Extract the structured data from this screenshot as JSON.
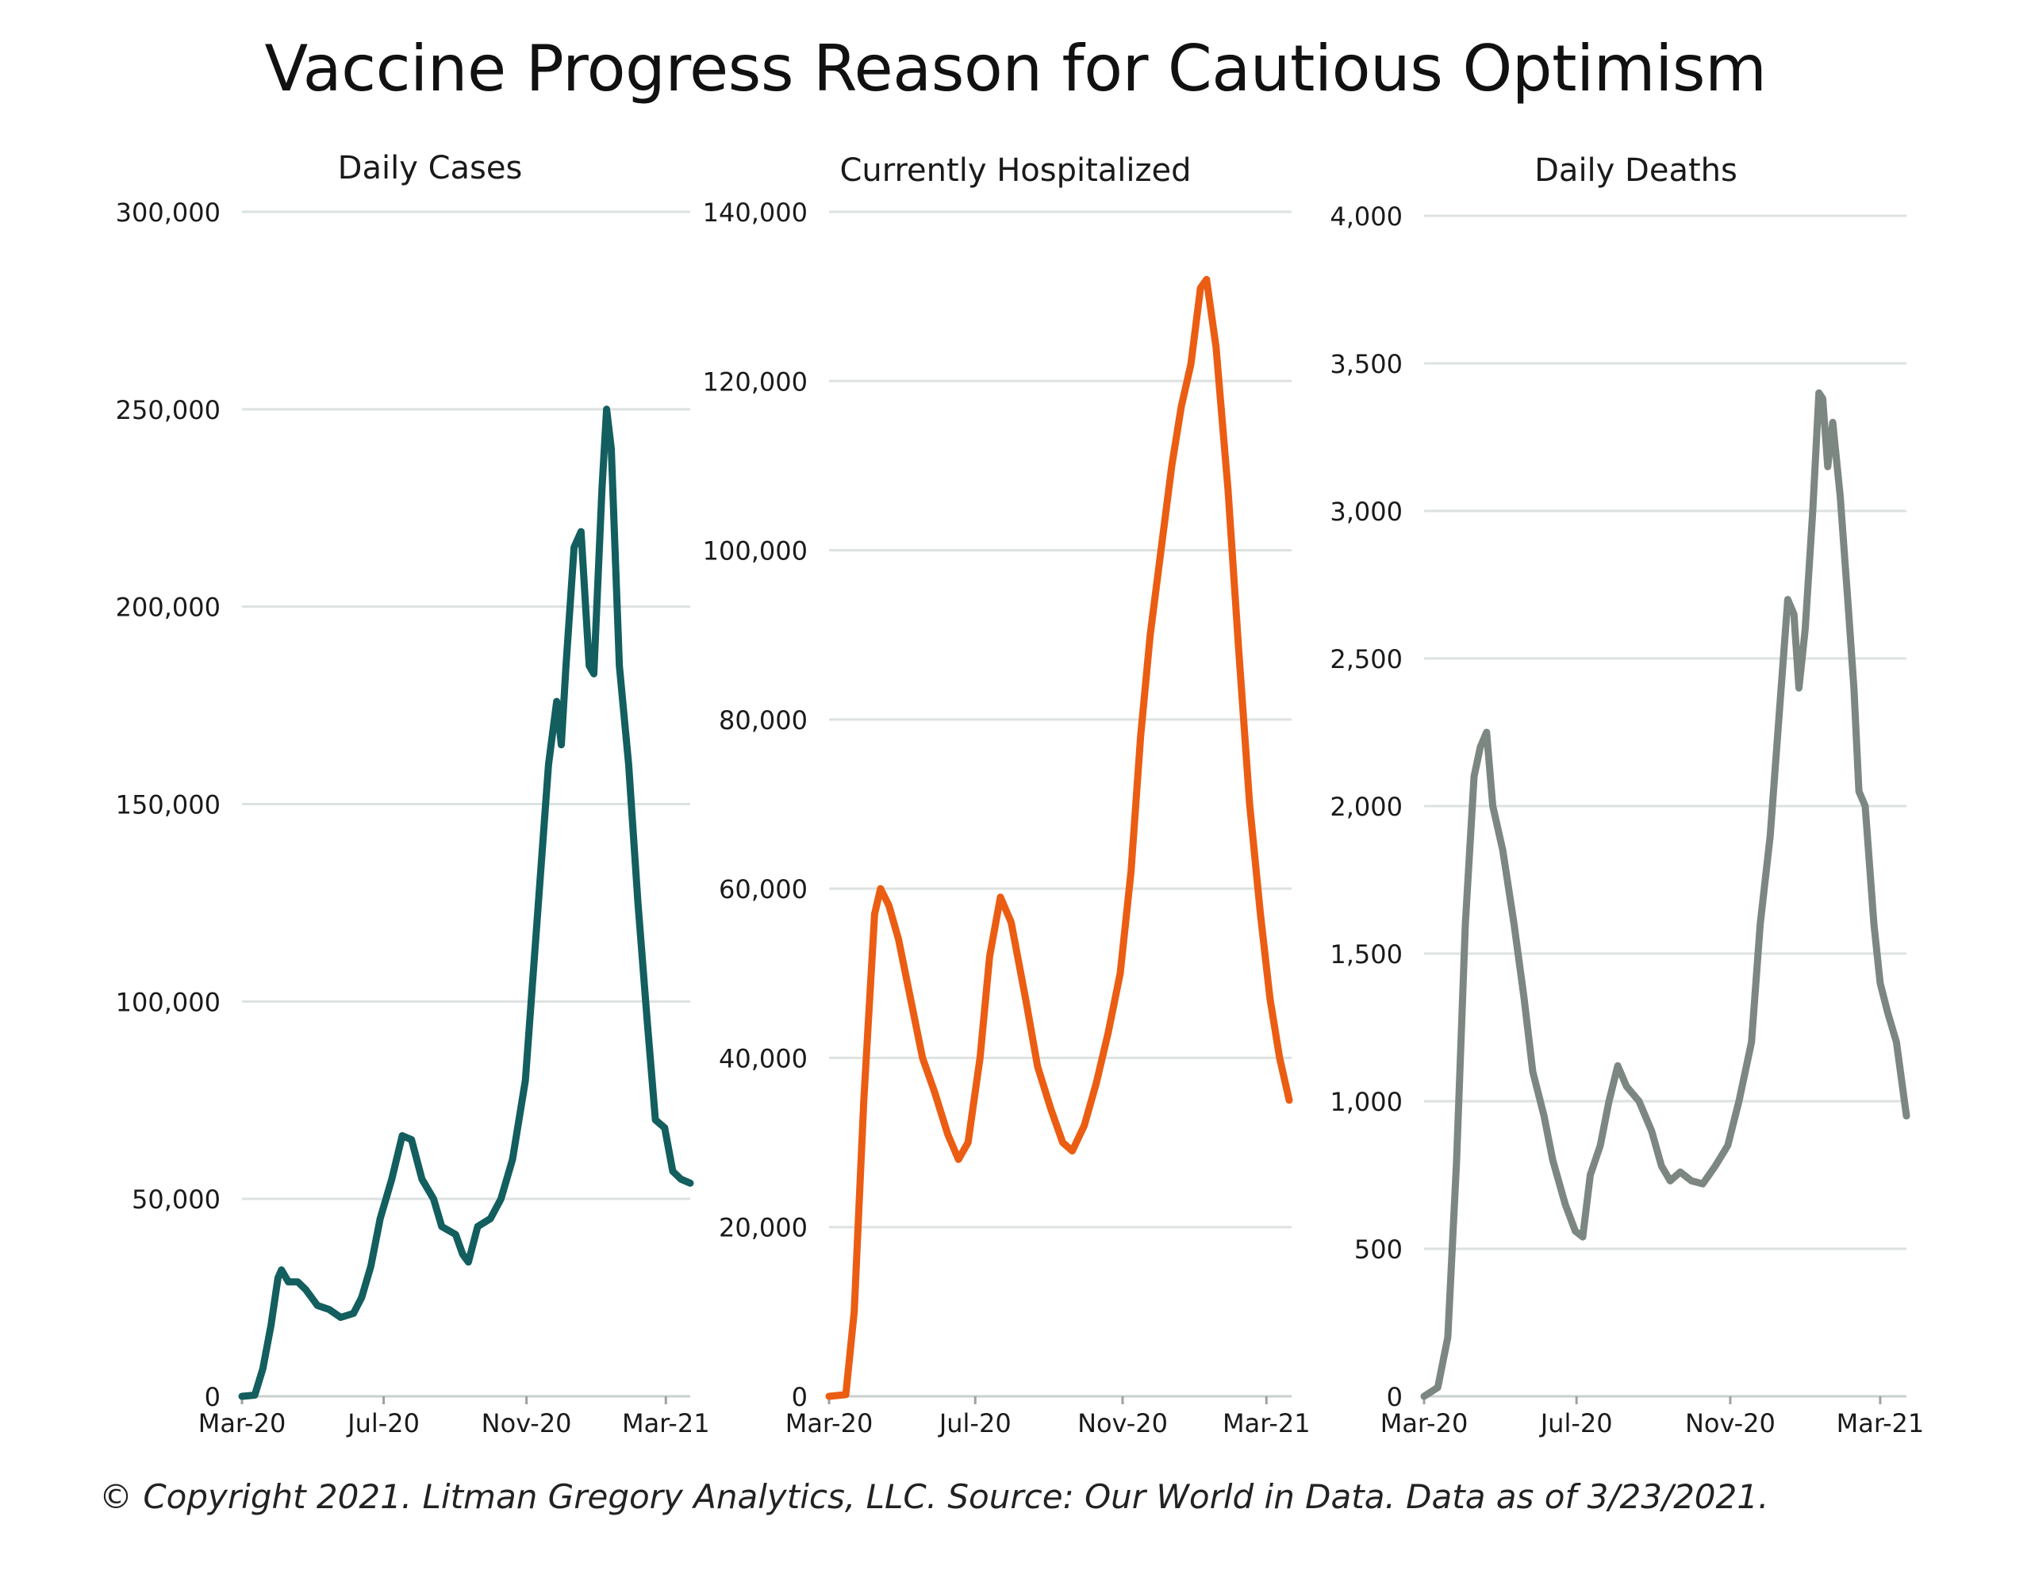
{
  "title": "Vaccine Progress Reason for Cautious Optimism",
  "footer": "© Copyright 2021. Litman Gregory Analytics, LLC. Source: Our World in Data. Data as of 3/23/2021.",
  "chart_data": [
    {
      "type": "line",
      "title": "Daily Cases",
      "color": "#135E5E",
      "xlim": [
        "2020-03-01",
        "2021-03-22"
      ],
      "x_ticks": [
        {
          "label": "Mar-20",
          "date": "2020-03-01"
        },
        {
          "label": "Jul-20",
          "date": "2020-07-01"
        },
        {
          "label": "Nov-20",
          "date": "2020-11-01"
        },
        {
          "label": "Mar-21",
          "date": "2021-03-01"
        }
      ],
      "ylim": [
        0,
        300000
      ],
      "y_ticks": [
        0,
        50000,
        100000,
        150000,
        200000,
        250000,
        300000
      ],
      "y_tick_labels": [
        "0",
        "50,000",
        "100,000",
        "150,000",
        "200,000",
        "250,000",
        "300,000"
      ],
      "grid": true,
      "series": [
        {
          "points": [
            [
              "2020-03-01",
              0
            ],
            [
              "2020-03-12",
              300
            ],
            [
              "2020-03-19",
              7000
            ],
            [
              "2020-03-26",
              18000
            ],
            [
              "2020-04-01",
              30000
            ],
            [
              "2020-04-04",
              32000
            ],
            [
              "2020-04-10",
              29000
            ],
            [
              "2020-04-18",
              29000
            ],
            [
              "2020-04-25",
              27000
            ],
            [
              "2020-05-05",
              23000
            ],
            [
              "2020-05-15",
              22000
            ],
            [
              "2020-05-25",
              20000
            ],
            [
              "2020-06-05",
              21000
            ],
            [
              "2020-06-12",
              25000
            ],
            [
              "2020-06-20",
              33000
            ],
            [
              "2020-06-28",
              45000
            ],
            [
              "2020-07-08",
              55000
            ],
            [
              "2020-07-17",
              66000
            ],
            [
              "2020-07-25",
              65000
            ],
            [
              "2020-08-03",
              55000
            ],
            [
              "2020-08-13",
              50000
            ],
            [
              "2020-08-20",
              43000
            ],
            [
              "2020-09-01",
              41000
            ],
            [
              "2020-09-07",
              36000
            ],
            [
              "2020-09-12",
              34000
            ],
            [
              "2020-09-20",
              43000
            ],
            [
              "2020-10-01",
              45000
            ],
            [
              "2020-10-10",
              50000
            ],
            [
              "2020-10-20",
              60000
            ],
            [
              "2020-10-31",
              80000
            ],
            [
              "2020-11-10",
              120000
            ],
            [
              "2020-11-20",
              160000
            ],
            [
              "2020-11-27",
              176000
            ],
            [
              "2020-12-01",
              165000
            ],
            [
              "2020-12-05",
              185000
            ],
            [
              "2020-12-12",
              215000
            ],
            [
              "2020-12-18",
              219000
            ],
            [
              "2020-12-25",
              185000
            ],
            [
              "2020-12-29",
              183000
            ],
            [
              "2021-01-05",
              230000
            ],
            [
              "2021-01-09",
              250000
            ],
            [
              "2021-01-13",
              240000
            ],
            [
              "2021-01-20",
              185000
            ],
            [
              "2021-01-28",
              160000
            ],
            [
              "2021-02-05",
              125000
            ],
            [
              "2021-02-13",
              95000
            ],
            [
              "2021-02-20",
              70000
            ],
            [
              "2021-02-28",
              68000
            ],
            [
              "2021-03-07",
              57000
            ],
            [
              "2021-03-14",
              55000
            ],
            [
              "2021-03-22",
              54000
            ]
          ]
        }
      ]
    },
    {
      "type": "line",
      "title": "Currently Hospitalized",
      "color": "#EB5D13",
      "xlim": [
        "2020-03-01",
        "2021-03-22"
      ],
      "x_ticks": [
        {
          "label": "Mar-20",
          "date": "2020-03-01"
        },
        {
          "label": "Jul-20",
          "date": "2020-07-01"
        },
        {
          "label": "Nov-20",
          "date": "2020-11-01"
        },
        {
          "label": "Mar-21",
          "date": "2021-03-01"
        }
      ],
      "ylim": [
        0,
        140000
      ],
      "y_ticks": [
        0,
        20000,
        40000,
        60000,
        80000,
        100000,
        120000,
        140000
      ],
      "y_tick_labels": [
        "0",
        "20,000",
        "40,000",
        "60,000",
        "80,000",
        "100,000",
        "120,000",
        "140,000"
      ],
      "grid": true,
      "series": [
        {
          "points": [
            [
              "2020-03-01",
              0
            ],
            [
              "2020-03-15",
              200
            ],
            [
              "2020-03-22",
              10000
            ],
            [
              "2020-03-30",
              35000
            ],
            [
              "2020-04-08",
              57000
            ],
            [
              "2020-04-13",
              60000
            ],
            [
              "2020-04-20",
              58000
            ],
            [
              "2020-04-28",
              54000
            ],
            [
              "2020-05-08",
              47000
            ],
            [
              "2020-05-18",
              40000
            ],
            [
              "2020-05-28",
              36000
            ],
            [
              "2020-06-08",
              31000
            ],
            [
              "2020-06-17",
              28000
            ],
            [
              "2020-06-25",
              30000
            ],
            [
              "2020-07-05",
              40000
            ],
            [
              "2020-07-13",
              52000
            ],
            [
              "2020-07-22",
              59000
            ],
            [
              "2020-07-31",
              56000
            ],
            [
              "2020-08-12",
              47000
            ],
            [
              "2020-08-22",
              39000
            ],
            [
              "2020-09-02",
              34000
            ],
            [
              "2020-09-12",
              30000
            ],
            [
              "2020-09-20",
              29000
            ],
            [
              "2020-09-30",
              32000
            ],
            [
              "2020-10-10",
              37000
            ],
            [
              "2020-10-20",
              43000
            ],
            [
              "2020-10-30",
              50000
            ],
            [
              "2020-11-08",
              62000
            ],
            [
              "2020-11-16",
              78000
            ],
            [
              "2020-11-24",
              90000
            ],
            [
              "2020-12-03",
              100000
            ],
            [
              "2020-12-12",
              110000
            ],
            [
              "2020-12-20",
              117000
            ],
            [
              "2020-12-28",
              122000
            ],
            [
              "2021-01-05",
              131000
            ],
            [
              "2021-01-10",
              132000
            ],
            [
              "2021-01-18",
              124000
            ],
            [
              "2021-01-28",
              107000
            ],
            [
              "2021-02-06",
              88000
            ],
            [
              "2021-02-15",
              70000
            ],
            [
              "2021-02-24",
              57000
            ],
            [
              "2021-03-04",
              47000
            ],
            [
              "2021-03-12",
              40000
            ],
            [
              "2021-03-20",
              35000
            ]
          ]
        }
      ]
    },
    {
      "type": "line",
      "title": "Daily Deaths",
      "color": "#7D8782",
      "xlim": [
        "2020-03-01",
        "2021-03-22"
      ],
      "x_ticks": [
        {
          "label": "Mar-20",
          "date": "2020-03-01"
        },
        {
          "label": "Jul-20",
          "date": "2020-07-01"
        },
        {
          "label": "Nov-20",
          "date": "2020-11-01"
        },
        {
          "label": "Mar-21",
          "date": "2021-03-01"
        }
      ],
      "ylim": [
        0,
        4000
      ],
      "y_ticks": [
        0,
        500,
        1000,
        1500,
        2000,
        2500,
        3000,
        3500,
        4000
      ],
      "y_tick_labels": [
        "0",
        "500",
        "1,000",
        "1,500",
        "2,000",
        "2,500",
        "3,000",
        "3,500",
        "4,000"
      ],
      "grid": true,
      "series": [
        {
          "points": [
            [
              "2020-03-01",
              0
            ],
            [
              "2020-03-12",
              30
            ],
            [
              "2020-03-20",
              200
            ],
            [
              "2020-03-27",
              800
            ],
            [
              "2020-04-03",
              1600
            ],
            [
              "2020-04-10",
              2100
            ],
            [
              "2020-04-15",
              2200
            ],
            [
              "2020-04-20",
              2250
            ],
            [
              "2020-04-25",
              2000
            ],
            [
              "2020-05-03",
              1850
            ],
            [
              "2020-05-12",
              1600
            ],
            [
              "2020-05-20",
              1350
            ],
            [
              "2020-05-27",
              1100
            ],
            [
              "2020-06-05",
              950
            ],
            [
              "2020-06-12",
              800
            ],
            [
              "2020-06-22",
              650
            ],
            [
              "2020-06-30",
              560
            ],
            [
              "2020-07-06",
              540
            ],
            [
              "2020-07-12",
              750
            ],
            [
              "2020-07-20",
              850
            ],
            [
              "2020-07-27",
              1000
            ],
            [
              "2020-08-03",
              1120
            ],
            [
              "2020-08-10",
              1050
            ],
            [
              "2020-08-20",
              1000
            ],
            [
              "2020-08-30",
              900
            ],
            [
              "2020-09-07",
              780
            ],
            [
              "2020-09-14",
              730
            ],
            [
              "2020-09-22",
              760
            ],
            [
              "2020-10-01",
              730
            ],
            [
              "2020-10-10",
              720
            ],
            [
              "2020-10-20",
              780
            ],
            [
              "2020-10-30",
              850
            ],
            [
              "2020-11-08",
              1000
            ],
            [
              "2020-11-18",
              1200
            ],
            [
              "2020-11-25",
              1600
            ],
            [
              "2020-12-03",
              1900
            ],
            [
              "2020-12-10",
              2300
            ],
            [
              "2020-12-17",
              2700
            ],
            [
              "2020-12-22",
              2650
            ],
            [
              "2020-12-26",
              2400
            ],
            [
              "2020-12-31",
              2600
            ],
            [
              "2021-01-06",
              3000
            ],
            [
              "2021-01-11",
              3400
            ],
            [
              "2021-01-14",
              3380
            ],
            [
              "2021-01-18",
              3150
            ],
            [
              "2021-01-22",
              3300
            ],
            [
              "2021-01-28",
              3050
            ],
            [
              "2021-02-03",
              2700
            ],
            [
              "2021-02-08",
              2400
            ],
            [
              "2021-02-12",
              2050
            ],
            [
              "2021-02-17",
              2000
            ],
            [
              "2021-02-24",
              1600
            ],
            [
              "2021-03-01",
              1400
            ],
            [
              "2021-03-07",
              1300
            ],
            [
              "2021-03-14",
              1200
            ],
            [
              "2021-03-22",
              950
            ]
          ]
        }
      ]
    }
  ]
}
